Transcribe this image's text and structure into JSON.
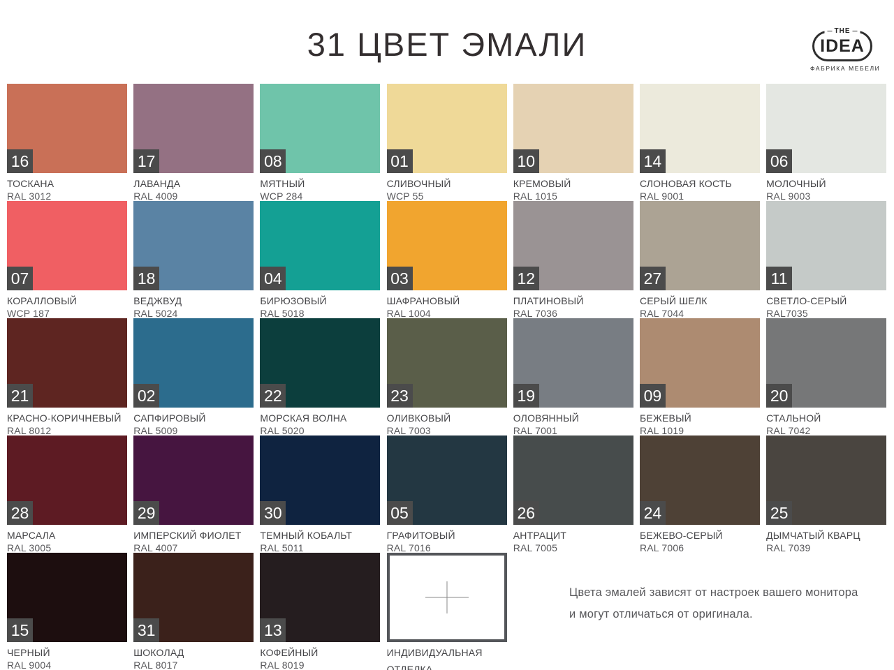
{
  "header": {
    "title": "31 ЦВЕТ ЭМАЛИ",
    "logo": {
      "top": "THE",
      "main": "IDEA",
      "subtitle": "ФАБРИКА МЕБЕЛИ"
    }
  },
  "colors": {
    "badge_bg": "#4B4B4B",
    "title_text": "#332E2F",
    "name_text": "#454548",
    "code_text": "#58585B",
    "custom_border": "#54565A",
    "cross_line": "#8A8A8A"
  },
  "swatches": [
    {
      "num": "16",
      "name": "ТОСКАНА",
      "code": "RAL 3012",
      "hex": "#C97057"
    },
    {
      "num": "17",
      "name": "ЛАВАНДА",
      "code": "RAL 4009",
      "hex": "#947183"
    },
    {
      "num": "08",
      "name": "МЯТНЫЙ",
      "code": "WCP 284",
      "hex": "#6FC4AA"
    },
    {
      "num": "01",
      "name": "СЛИВОЧНЫЙ",
      "code": "WCP 55",
      "hex": "#EFD998"
    },
    {
      "num": "10",
      "name": "КРЕМОВЫЙ",
      "code": "RAL 1015",
      "hex": "#E5D2B3"
    },
    {
      "num": "14",
      "name": "СЛОНОВАЯ КОСТЬ",
      "code": "RAL 9001",
      "hex": "#ECEADC"
    },
    {
      "num": "06",
      "name": "МОЛОЧНЫЙ",
      "code": "RAL 9003",
      "hex": "#E4E7E2"
    },
    {
      "num": "07",
      "name": "КОРАЛЛОВЫЙ",
      "code": "WCP 187",
      "hex": "#F05F63"
    },
    {
      "num": "18",
      "name": "ВЕДЖВУД",
      "code": "RAL 5024",
      "hex": "#5A83A4"
    },
    {
      "num": "04",
      "name": "БИРЮЗОВЫЙ",
      "code": "RAL 5018",
      "hex": "#14A094"
    },
    {
      "num": "03",
      "name": "ШАФРАНОВЫЙ",
      "code": "RAL 1004",
      "hex": "#F1A52F"
    },
    {
      "num": "12",
      "name": "ПЛАТИНОВЫЙ",
      "code": "RAL 7036",
      "hex": "#9A9394"
    },
    {
      "num": "27",
      "name": "СЕРЫЙ ШЕЛК",
      "code": "RAL 7044",
      "hex": "#ACA394"
    },
    {
      "num": "11",
      "name": "СВЕТЛО-СЕРЫЙ",
      "code": "RAL7035",
      "hex": "#C5CAC8"
    },
    {
      "num": "21",
      "name": "КРАСНО-КОРИЧНЕВЫЙ",
      "code": "RAL 8012",
      "hex": "#5E2521"
    },
    {
      "num": "02",
      "name": "САПФИРОВЫЙ",
      "code": "RAL 5009",
      "hex": "#2C6C8D"
    },
    {
      "num": "22",
      "name": "МОРСКАЯ ВОЛНА",
      "code": "RAL 5020",
      "hex": "#0C3E3D"
    },
    {
      "num": "23",
      "name": "ОЛИВКОВЫЙ",
      "code": "RAL 7003",
      "hex": "#5A5E49"
    },
    {
      "num": "19",
      "name": "ОЛОВЯННЫЙ",
      "code": "RAL 7001",
      "hex": "#787D83"
    },
    {
      "num": "09",
      "name": "БЕЖЕВЫЙ",
      "code": "RAL 1019",
      "hex": "#AD8B71"
    },
    {
      "num": "20",
      "name": "СТАЛЬНОЙ",
      "code": "RAL 7042",
      "hex": "#767778"
    },
    {
      "num": "28",
      "name": "МАРСАЛА",
      "code": "RAL 3005",
      "hex": "#5D1B23"
    },
    {
      "num": "29",
      "name": "ИМПЕРСКИЙ ФИОЛЕТ",
      "code": "RAL 4007",
      "hex": "#461540"
    },
    {
      "num": "30",
      "name": "ТЕМНЫЙ КОБАЛЬТ",
      "code": "RAL 5011",
      "hex": "#0F2340"
    },
    {
      "num": "05",
      "name": "ГРАФИТОВЫЙ",
      "code": "RAL 7016",
      "hex": "#233742"
    },
    {
      "num": "26",
      "name": "АНТРАЦИТ",
      "code": "RAL 7005",
      "hex": "#474C4C"
    },
    {
      "num": "24",
      "name": "БЕЖЕВО-СЕРЫЙ",
      "code": "RAL 7006",
      "hex": "#4E4136"
    },
    {
      "num": "25",
      "name": "ДЫМЧАТЫЙ КВАРЦ",
      "code": "RAL 7039",
      "hex": "#4A4540"
    },
    {
      "num": "15",
      "name": "ЧЕРНЫЙ",
      "code": "RAL 9004",
      "hex": "#1D0E0F"
    },
    {
      "num": "31",
      "name": "ШОКОЛАД",
      "code": "RAL 8017",
      "hex": "#3B211B"
    },
    {
      "num": "13",
      "name": "КОФЕЙНЫЙ",
      "code": "RAL 8019",
      "hex": "#251D1F"
    }
  ],
  "custom_swatch": {
    "label_line1": "ИНДИВИДУАЛЬНАЯ",
    "label_line2": "ОТДЕЛКА"
  },
  "note": {
    "line1": "Цвета эмалей зависят от настроек  вашего монитора",
    "line2": "и могут отличаться  от оригинала."
  }
}
